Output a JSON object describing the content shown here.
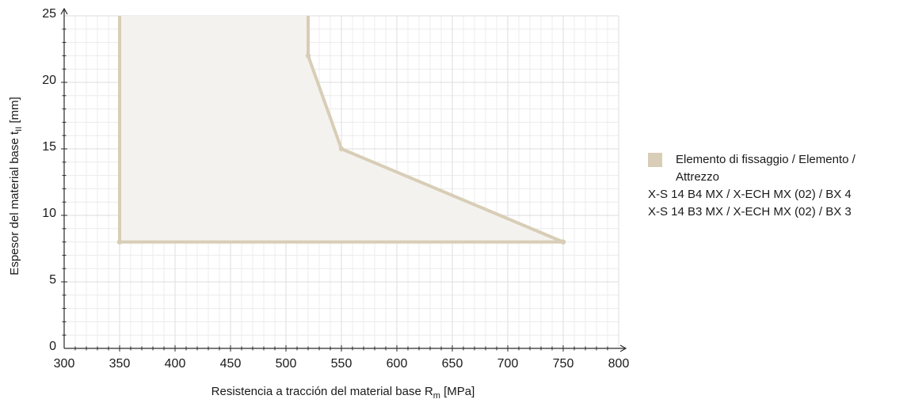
{
  "chart_data": {
    "type": "area",
    "xlabel": {
      "main": "Resistencia a tracción del material base R",
      "sub": "m",
      "unit": " [MPa]"
    },
    "ylabel": {
      "main": "Espesor del material base t",
      "sub": "II",
      "unit": " [mm]"
    },
    "xlim": [
      300,
      800
    ],
    "ylim": [
      0,
      25
    ],
    "x_ticks": [
      300,
      350,
      400,
      450,
      500,
      550,
      600,
      650,
      700,
      750,
      800
    ],
    "y_ticks": [
      0,
      5,
      10,
      15,
      20,
      25
    ],
    "grid": true,
    "legend_position": "right",
    "colors": {
      "series": "#d8cdb6",
      "fill": "#f4f2ee",
      "grid": "#ececec",
      "axis": "#2a2a2a"
    },
    "series": [
      {
        "name": "",
        "polygon": [
          [
            350,
            25
          ],
          [
            350,
            8
          ],
          [
            750,
            8
          ],
          [
            550,
            15
          ],
          [
            520,
            22
          ],
          [
            520,
            25
          ]
        ],
        "markers": [
          [
            350,
            8
          ],
          [
            750,
            8
          ],
          [
            550,
            15
          ],
          [
            520,
            22
          ]
        ]
      }
    ],
    "legend": {
      "title": "Elemento di fissaggio / Elemento / Attrezzo",
      "entries": [
        "X-S 14 B4 MX / X-ECH MX (02) / BX 4",
        "X-S 14 B3 MX / X-ECH MX (02) / BX 3"
      ]
    }
  }
}
